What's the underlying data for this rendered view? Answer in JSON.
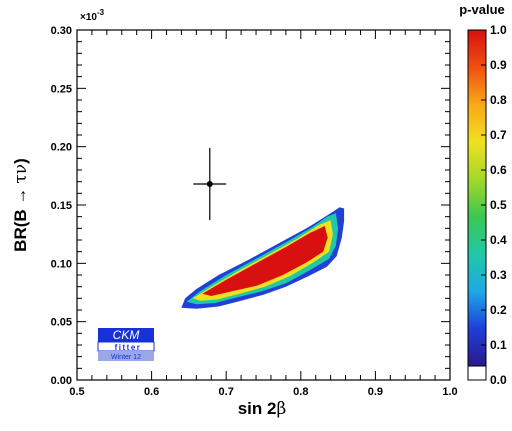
{
  "chart_data": {
    "type": "heatmap",
    "x_axis": {
      "label_main": "sin 2",
      "label_symbol": "β",
      "range": [
        0.5,
        1.0
      ],
      "ticks": [
        0.5,
        0.6,
        0.7,
        0.8,
        0.9,
        1.0
      ],
      "tick_labels": [
        "0.5",
        "0.6",
        "0.7",
        "0.8",
        "0.9",
        "1.0"
      ]
    },
    "y_axis": {
      "label_prefix": "BR(B ",
      "label_arrow": "→",
      "label_symbol": "τν",
      "label_suffix": ")",
      "range": [
        0.0,
        0.3
      ],
      "ticks": [
        0.0,
        0.05,
        0.1,
        0.15,
        0.2,
        0.25,
        0.3
      ],
      "tick_labels": [
        "0.00",
        "0.05",
        "0.10",
        "0.15",
        "0.20",
        "0.25",
        "0.30"
      ],
      "exponent_base": "×10",
      "exponent_power": "-3"
    },
    "colorbar": {
      "title": "p-value",
      "range": [
        0.0,
        1.0
      ],
      "ticks": [
        0.0,
        0.1,
        0.2,
        0.3,
        0.4,
        0.5,
        0.6,
        0.7,
        0.8,
        0.9,
        1.0
      ],
      "tick_labels": [
        "0.0",
        "0.1",
        "0.2",
        "0.3",
        "0.4",
        "0.5",
        "0.6",
        "0.7",
        "0.8",
        "0.9",
        "1.0"
      ],
      "colors": [
        "#ffffff",
        "#2a1a8c",
        "#1f3fd8",
        "#1ea8e6",
        "#20c8a8",
        "#3cc850",
        "#a4d828",
        "#f0e020",
        "#f8a818",
        "#f05010",
        "#d81010"
      ]
    },
    "contour_regions": [
      {
        "level": "outer",
        "p_value": 0.05,
        "color": "#2040d8",
        "points": [
          [
            0.64,
            0.062
          ],
          [
            0.645,
            0.07
          ],
          [
            0.66,
            0.078
          ],
          [
            0.69,
            0.09
          ],
          [
            0.73,
            0.103
          ],
          [
            0.77,
            0.117
          ],
          [
            0.81,
            0.131
          ],
          [
            0.84,
            0.143
          ],
          [
            0.852,
            0.148
          ],
          [
            0.858,
            0.147
          ],
          [
            0.858,
            0.136
          ],
          [
            0.855,
            0.122
          ],
          [
            0.848,
            0.106
          ],
          [
            0.835,
            0.097
          ],
          [
            0.81,
            0.089
          ],
          [
            0.78,
            0.08
          ],
          [
            0.75,
            0.073
          ],
          [
            0.72,
            0.068
          ],
          [
            0.69,
            0.063
          ],
          [
            0.66,
            0.061
          ]
        ]
      },
      {
        "level": "mid",
        "p_value": 0.32,
        "color": "#20c8a8",
        "points": [
          [
            0.647,
            0.067
          ],
          [
            0.665,
            0.076
          ],
          [
            0.7,
            0.09
          ],
          [
            0.74,
            0.104
          ],
          [
            0.78,
            0.118
          ],
          [
            0.815,
            0.131
          ],
          [
            0.835,
            0.14
          ],
          [
            0.847,
            0.143
          ],
          [
            0.85,
            0.13
          ],
          [
            0.847,
            0.115
          ],
          [
            0.838,
            0.104
          ],
          [
            0.812,
            0.094
          ],
          [
            0.78,
            0.083
          ],
          [
            0.748,
            0.076
          ],
          [
            0.715,
            0.071
          ],
          [
            0.685,
            0.066
          ],
          [
            0.66,
            0.065
          ]
        ]
      },
      {
        "level": "inner",
        "p_value": 0.7,
        "color": "#f0e020",
        "points": [
          [
            0.655,
            0.07
          ],
          [
            0.68,
            0.08
          ],
          [
            0.715,
            0.093
          ],
          [
            0.755,
            0.107
          ],
          [
            0.795,
            0.121
          ],
          [
            0.825,
            0.133
          ],
          [
            0.84,
            0.137
          ],
          [
            0.843,
            0.125
          ],
          [
            0.838,
            0.11
          ],
          [
            0.815,
            0.1
          ],
          [
            0.785,
            0.089
          ],
          [
            0.752,
            0.08
          ],
          [
            0.718,
            0.074
          ],
          [
            0.688,
            0.069
          ],
          [
            0.665,
            0.068
          ]
        ]
      },
      {
        "level": "core",
        "p_value": 0.9,
        "color": "#d81010",
        "points": [
          [
            0.668,
            0.074
          ],
          [
            0.7,
            0.086
          ],
          [
            0.74,
            0.1
          ],
          [
            0.78,
            0.114
          ],
          [
            0.812,
            0.126
          ],
          [
            0.832,
            0.132
          ],
          [
            0.836,
            0.122
          ],
          [
            0.83,
            0.11
          ],
          [
            0.808,
            0.101
          ],
          [
            0.776,
            0.09
          ],
          [
            0.742,
            0.081
          ],
          [
            0.708,
            0.076
          ],
          [
            0.68,
            0.072
          ]
        ]
      }
    ],
    "measurement": {
      "x": 0.678,
      "y": 0.168,
      "x_err": 0.022,
      "y_err_low": 0.031,
      "y_err_high": 0.031
    },
    "legend": {
      "logo_top": "CKM",
      "logo_middle": "fitter",
      "logo_bottom": "Winter 12",
      "placement": "bottom-left"
    }
  }
}
